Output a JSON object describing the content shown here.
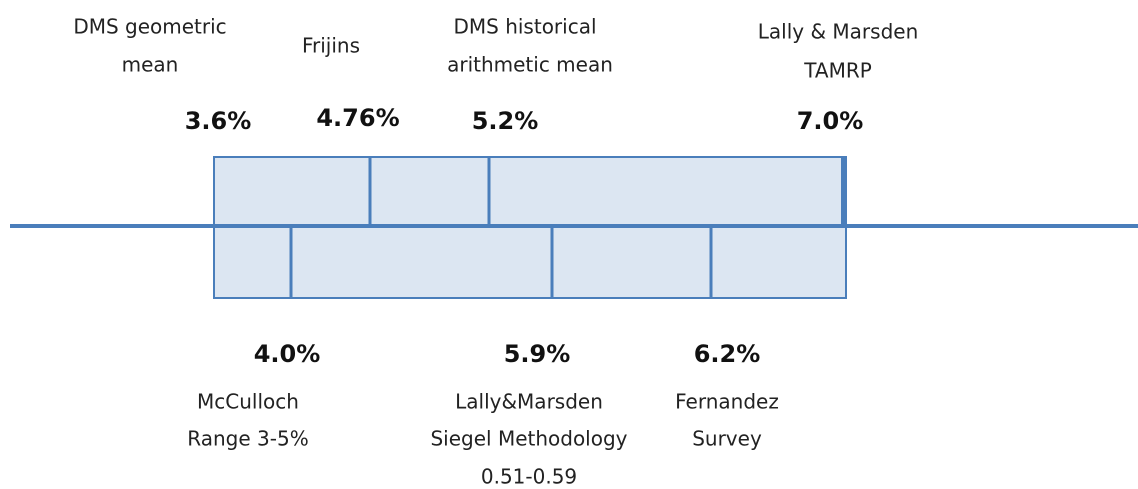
{
  "upper_markers": [
    {
      "label_lines": [
        "DMS geometric",
        "mean"
      ],
      "value": "3.6%"
    },
    {
      "label_lines": [
        "Frijins"
      ],
      "value": "4.76%"
    },
    {
      "label_lines": [
        "DMS historical",
        "arithmetic mean"
      ],
      "value": "5.2%"
    },
    {
      "label_lines": [
        "Lally & Marsden",
        "TAMRP"
      ],
      "value": "7.0%"
    }
  ],
  "lower_markers": [
    {
      "value": "4.0%",
      "label_lines": [
        "McCulloch",
        "Range 3-5%"
      ]
    },
    {
      "value": "5.9%",
      "label_lines": [
        "Lally&Marsden",
        "Siegel Methodology",
        "0.51-0.59"
      ]
    },
    {
      "value": "6.2%",
      "label_lines": [
        "Fernandez",
        "Survey"
      ]
    }
  ]
}
